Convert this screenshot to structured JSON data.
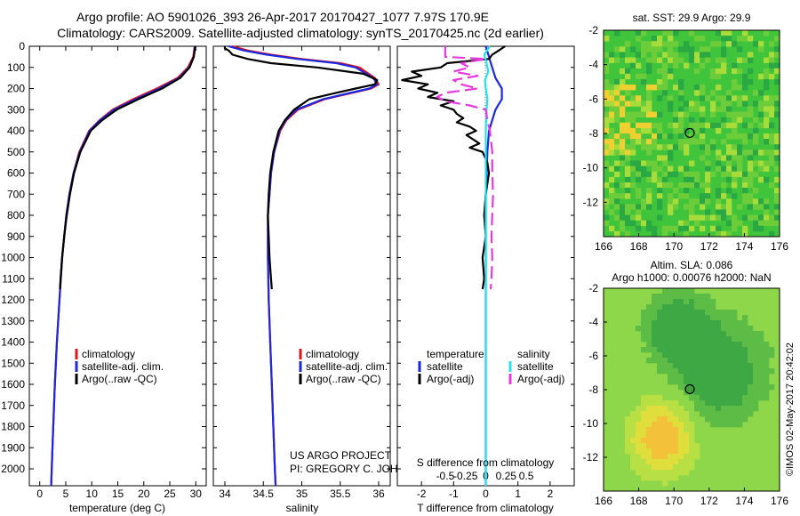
{
  "header": {
    "line1": "Argo profile: AO 5901026_393 26-Apr-2017 20170427_1077 7.97S 170.9E",
    "line2": "Climatology: CARS2009. Satellite-adjusted climatology: synTS_20170425.nc (2d earlier)"
  },
  "colors": {
    "climatology": "#e8101a",
    "satellite": "#1a28e0",
    "argo": "#000000",
    "salinity_sat": "#22e4f0",
    "salinity_argo": "#e838e0"
  },
  "chart_data": [
    {
      "id": "temperature",
      "type": "line",
      "xlabel": "temperature (deg C)",
      "xlim": [
        -2,
        32
      ],
      "xticks": [
        0,
        5,
        10,
        15,
        20,
        25,
        30
      ],
      "xtick_labels": [
        "0",
        "5",
        "10",
        "15",
        "20",
        "25",
        "30"
      ],
      "ylim": [
        2080,
        0
      ],
      "yticks": [
        0,
        100,
        200,
        300,
        400,
        500,
        600,
        700,
        800,
        900,
        1000,
        1100,
        1200,
        1300,
        1400,
        1500,
        1600,
        1700,
        1800,
        1900,
        2000
      ],
      "ytick_labels": [
        "0",
        "100",
        "200",
        "300",
        "400",
        "500",
        "600",
        "700",
        "800",
        "900",
        "1000",
        "1100",
        "1200",
        "1300",
        "1400",
        "1500",
        "1600",
        "1700",
        "1800",
        "1900",
        "2000"
      ],
      "legend": [
        "climatology",
        "satellite-adj. clim.",
        "Argo(..raw -QC)"
      ],
      "series": [
        {
          "name": "climatology",
          "color": "#e8101a",
          "depth": [
            0,
            50,
            100,
            150,
            200,
            250,
            300,
            350,
            400,
            500,
            600,
            700,
            800,
            1000,
            1200,
            1400,
            1600,
            1800,
            2000,
            2080
          ],
          "values": [
            29.8,
            29.5,
            28.5,
            26.5,
            22.5,
            18,
            14,
            11.5,
            9.5,
            7.6,
            6.5,
            5.7,
            5.1,
            4.3,
            3.8,
            3.3,
            2.9,
            2.6,
            2.3,
            2.2
          ]
        },
        {
          "name": "satellite-adj. clim.",
          "color": "#1a28e0",
          "depth": [
            0,
            50,
            100,
            150,
            200,
            250,
            300,
            350,
            400,
            500,
            600,
            700,
            800,
            1000,
            1200,
            1400,
            1600,
            1800,
            2000,
            2080
          ],
          "values": [
            29.8,
            29.6,
            28.7,
            26.8,
            23,
            18.5,
            14.3,
            11.6,
            9.6,
            7.7,
            6.5,
            5.7,
            5.1,
            4.3,
            3.8,
            3.3,
            2.9,
            2.6,
            2.3,
            2.2
          ]
        },
        {
          "name": "Argo(..raw -QC)",
          "color": "#000000",
          "depth": [
            0,
            50,
            100,
            150,
            200,
            250,
            300,
            350,
            400,
            500,
            600,
            700,
            800,
            900,
            1000,
            1100,
            1150
          ],
          "values": [
            29.9,
            29.6,
            28.8,
            27,
            23.5,
            19,
            14.8,
            12,
            9.8,
            7.8,
            6.6,
            5.8,
            5.2,
            4.7,
            4.3,
            4.0,
            3.9
          ]
        }
      ]
    },
    {
      "id": "salinity",
      "type": "line",
      "xlabel": "salinity",
      "xlim": [
        33.85,
        36.15
      ],
      "xticks": [
        34,
        34.5,
        35,
        35.5,
        36
      ],
      "xtick_labels": [
        "34",
        "34.5",
        "35",
        "35.5",
        "36"
      ],
      "ylim": [
        2080,
        0
      ],
      "legend": [
        "climatology",
        "satellite-adj. clim.",
        "Argo(..raw -QC)"
      ],
      "annotation_lines": [
        "US ARGO PROJECT",
        "PI: GREGORY C. JOHNSON"
      ],
      "series": [
        {
          "name": "climatology",
          "color": "#e8101a",
          "depth": [
            0,
            20,
            40,
            60,
            80,
            100,
            150,
            180,
            200,
            250,
            300,
            350,
            400,
            500,
            600,
            700,
            800,
            1000,
            1200,
            1400,
            1600,
            1800,
            2000,
            2080
          ],
          "values": [
            34.1,
            34.3,
            34.6,
            35.0,
            35.5,
            35.75,
            35.95,
            36.0,
            35.9,
            35.3,
            34.95,
            34.8,
            34.72,
            34.64,
            34.6,
            34.58,
            34.56,
            34.56,
            34.57,
            34.59,
            34.61,
            34.63,
            34.65,
            34.66
          ]
        },
        {
          "name": "satellite-adj. clim.",
          "color": "#1a28e0",
          "depth": [
            0,
            20,
            40,
            60,
            80,
            100,
            150,
            180,
            200,
            250,
            300,
            350,
            400,
            500,
            600,
            700,
            800,
            1000,
            1200,
            1400,
            1600,
            1800,
            2000,
            2080
          ],
          "values": [
            34.05,
            34.25,
            34.55,
            34.95,
            35.45,
            35.7,
            35.93,
            35.98,
            35.88,
            35.28,
            34.93,
            34.79,
            34.71,
            34.64,
            34.6,
            34.58,
            34.56,
            34.56,
            34.57,
            34.59,
            34.61,
            34.63,
            34.65,
            34.66
          ]
        },
        {
          "name": "Argo(..raw -QC)",
          "color": "#000000",
          "depth": [
            0,
            10,
            20,
            40,
            60,
            80,
            100,
            130,
            160,
            180,
            200,
            220,
            250,
            300,
            350,
            400,
            500,
            600,
            700,
            800,
            900,
            1000,
            1100,
            1150
          ],
          "values": [
            34.0,
            34.0,
            34.05,
            34.1,
            34.3,
            34.6,
            35.2,
            35.8,
            35.98,
            35.95,
            35.7,
            35.45,
            35.1,
            34.9,
            34.78,
            34.7,
            34.63,
            34.59,
            34.57,
            34.56,
            34.57,
            34.58,
            34.6,
            34.61
          ]
        }
      ]
    },
    {
      "id": "difference",
      "type": "line",
      "xlabel": "T difference from climatology",
      "xlim": [
        -2.75,
        2.75
      ],
      "xticks": [
        -2,
        -1,
        0,
        1,
        2
      ],
      "xtick_labels": [
        "-2",
        "-1",
        "0",
        "1",
        "2"
      ],
      "top_axis_label": "S difference from climatology",
      "top_ticks": [
        -0.5,
        -0.25,
        0,
        0.25,
        0.5
      ],
      "top_tick_labels": [
        "-0.5",
        "-0.25",
        "0",
        "0.25",
        "0.5"
      ],
      "ylim": [
        2080,
        0
      ],
      "legend_left_title": "temperature",
      "legend_right_title": "salinity",
      "legend_left": [
        "satellite",
        "Argo(-adj)"
      ],
      "legend_right": [
        "satellite",
        "Argo(-adj)"
      ],
      "series": [
        {
          "name": "T satellite",
          "color": "#1a28e0",
          "depth": [
            0,
            50,
            100,
            150,
            200,
            250,
            300,
            400,
            500,
            700,
            1000,
            1500,
            2080
          ],
          "values": [
            0,
            0.1,
            0.2,
            0.3,
            0.5,
            0.5,
            0.3,
            0.1,
            0.05,
            0,
            0,
            0,
            0
          ]
        },
        {
          "name": "T Argo(-adj)",
          "color": "#000000",
          "depth": [
            0,
            20,
            40,
            60,
            80,
            100,
            120,
            140,
            160,
            180,
            200,
            220,
            240,
            260,
            280,
            300,
            320,
            340,
            360,
            380,
            400,
            420,
            440,
            460,
            480,
            500,
            550,
            600,
            700,
            800,
            900,
            1000,
            1100,
            1150
          ],
          "values": [
            0.6,
            0.4,
            0.2,
            0.1,
            -1.2,
            -1.4,
            -2.3,
            -2.0,
            -2.6,
            -1.8,
            -2.1,
            -1.5,
            -1.8,
            -1.0,
            -1.4,
            -1.0,
            -0.9,
            -0.7,
            -0.9,
            -0.5,
            -0.3,
            -0.6,
            -0.4,
            -0.2,
            -0.5,
            -0.1,
            0.05,
            0.1,
            0.0,
            -0.05,
            0.0,
            -0.1,
            -0.05,
            -0.1
          ]
        },
        {
          "name": "S satellite",
          "color": "#22e4f0",
          "depth": [
            0,
            40,
            80,
            120,
            160,
            200,
            250,
            300,
            400,
            500,
            700,
            1000,
            1500,
            2080
          ],
          "values": [
            0.05,
            -0.02,
            0.01,
            0.03,
            -0.01,
            0,
            0.02,
            0.01,
            0,
            0,
            0,
            0,
            0,
            0
          ]
        },
        {
          "name": "S Argo(-adj)",
          "color": "#e838e0",
          "depth": [
            0,
            50,
            60,
            80,
            100,
            120,
            140,
            160,
            180,
            200,
            220,
            240,
            260,
            280,
            300,
            350,
            400,
            500,
            600,
            700,
            800,
            900,
            1000,
            1100,
            1150
          ],
          "values": [
            -0.5,
            -0.5,
            0.0,
            -0.3,
            -0.2,
            -0.4,
            -0.1,
            -0.4,
            -0.3,
            -0.1,
            -0.5,
            -0.6,
            -0.5,
            -0.2,
            0.0,
            0.02,
            0.05,
            0.08,
            0.08,
            0.09,
            0.08,
            0.07,
            0.08,
            0.07,
            0.06
          ]
        }
      ]
    },
    {
      "id": "sst_map",
      "type": "heatmap",
      "title": "sat. SST: 29.9 Argo: 29.9",
      "xlim": [
        166,
        176
      ],
      "ylim": [
        -14,
        -2
      ],
      "xticks": [
        166,
        168,
        170,
        172,
        174,
        176
      ],
      "xtick_labels": [
        "166",
        "168",
        "170",
        "172",
        "174",
        "176"
      ],
      "yticks": [
        -2,
        -4,
        -6,
        -8,
        -10,
        -12
      ],
      "ytick_labels": [
        "-2",
        "-4",
        "-6",
        "-8",
        "-10",
        "-12"
      ],
      "marker": {
        "lon": 170.9,
        "lat": -7.97
      }
    },
    {
      "id": "sla_map",
      "type": "heatmap",
      "title_line1": "Altim. SLA: 0.086",
      "title_line2": "Argo h1000: 0.00076 h2000: NaN",
      "xlim": [
        166,
        176
      ],
      "ylim": [
        -14,
        -2
      ],
      "xticks": [
        166,
        168,
        170,
        172,
        174,
        176
      ],
      "xtick_labels": [
        "166",
        "168",
        "170",
        "172",
        "174",
        "176"
      ],
      "yticks": [
        -2,
        -4,
        -6,
        -8,
        -10,
        -12
      ],
      "ytick_labels": [
        "-2",
        "-4",
        "-6",
        "-8",
        "-10",
        "-12"
      ],
      "marker": {
        "lon": 170.9,
        "lat": -7.97
      }
    }
  ],
  "credit": "©IMOS 02-May-2017 20:42:02"
}
